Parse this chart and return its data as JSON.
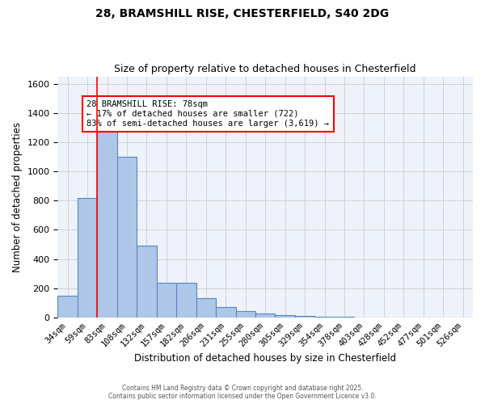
{
  "title_line1": "28, BRAMSHILL RISE, CHESTERFIELD, S40 2DG",
  "title_line2": "Size of property relative to detached houses in Chesterfield",
  "xlabel": "Distribution of detached houses by size in Chesterfield",
  "ylabel": "Number of detached properties",
  "categories": [
    "34sqm",
    "59sqm",
    "83sqm",
    "108sqm",
    "132sqm",
    "157sqm",
    "182sqm",
    "206sqm",
    "231sqm",
    "255sqm",
    "280sqm",
    "305sqm",
    "329sqm",
    "354sqm",
    "378sqm",
    "403sqm",
    "428sqm",
    "452sqm",
    "477sqm",
    "501sqm",
    "526sqm"
  ],
  "values": [
    150,
    820,
    1300,
    1100,
    490,
    235,
    235,
    135,
    70,
    45,
    25,
    15,
    10,
    5,
    3,
    2,
    1,
    0,
    0,
    0,
    0
  ],
  "bar_color": "#aec6e8",
  "bar_edge_color": "#5588bb",
  "bar_linewidth": 0.8,
  "grid_color": "#cccccc",
  "background_color": "#eef2fa",
  "red_line_x": 1.5,
  "annotation_text": "28 BRAMSHILL RISE: 78sqm\n← 17% of detached houses are smaller (722)\n83% of semi-detached houses are larger (3,619) →",
  "annotation_box_color": "white",
  "annotation_border_color": "red",
  "ylim": [
    0,
    1650
  ],
  "yticks": [
    0,
    200,
    400,
    600,
    800,
    1000,
    1200,
    1400,
    1600
  ],
  "footnote_line1": "Contains HM Land Registry data © Crown copyright and database right 2025.",
  "footnote_line2": "Contains public sector information licensed under the Open Government Licence v3.0."
}
